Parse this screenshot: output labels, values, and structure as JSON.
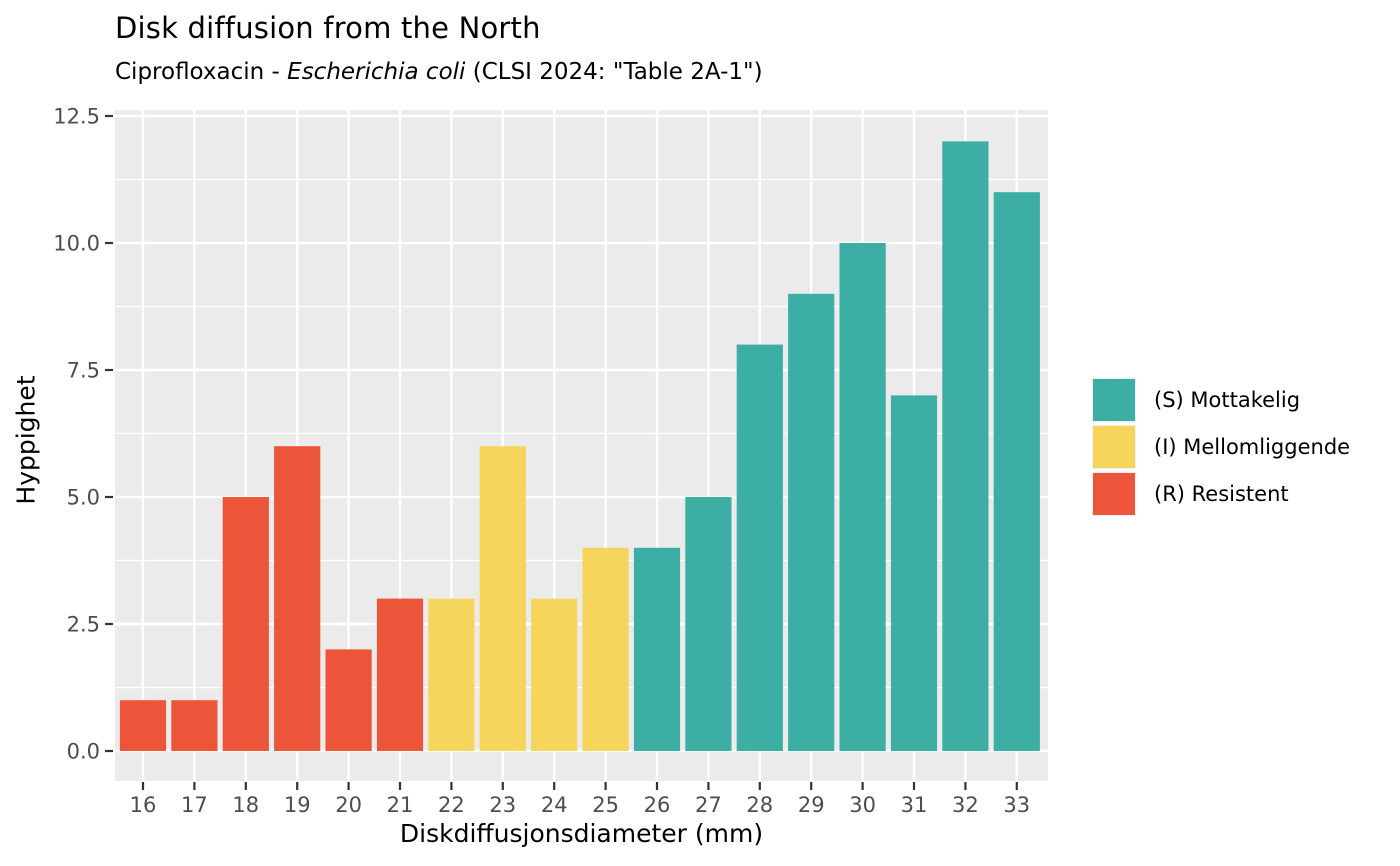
{
  "figure_title": "Disk diffusion from the North",
  "subtitle": {
    "prefix": "Ciprofloxacin - ",
    "italic": "Escherichia coli",
    "suffix": " (CLSI 2024: \"Table 2A-1\")"
  },
  "chart_data": {
    "type": "bar",
    "title": "Disk diffusion from the North",
    "subtitle_plain": "Ciprofloxacin - Escherichia coli (CLSI 2024: \"Table 2A-1\")",
    "xlabel": "Diskdiffusjonsdiameter (mm)",
    "ylabel": "Hyppighet",
    "categories": [
      16,
      17,
      18,
      19,
      20,
      21,
      22,
      23,
      24,
      25,
      26,
      27,
      28,
      29,
      30,
      31,
      32,
      33
    ],
    "values": [
      1,
      1,
      5,
      6,
      2,
      3,
      3,
      6,
      3,
      4,
      4,
      5,
      8,
      9,
      10,
      7,
      12,
      11
    ],
    "groups": [
      "R",
      "R",
      "R",
      "R",
      "R",
      "R",
      "I",
      "I",
      "I",
      "I",
      "S",
      "S",
      "S",
      "S",
      "S",
      "S",
      "S",
      "S"
    ],
    "series_colors": {
      "S": "#3CAEA3",
      "I": "#F6D55C",
      "R": "#ED553B"
    },
    "y_ticks": {
      "values": [
        0,
        2.5,
        5,
        7.5,
        10,
        12.5
      ],
      "labels": [
        "0.0",
        "2.5",
        "5.0",
        "7.5",
        "10.0",
        "12.5"
      ]
    },
    "y_minor_ticks": [
      1.25,
      3.75,
      6.25,
      8.75,
      11.25
    ],
    "ylim": [
      -0.6,
      12.62
    ],
    "grid": "on",
    "legend_position": "right",
    "legend": [
      {
        "group": "S",
        "label": "(S) Mottakelig",
        "color": "#3CAEA3"
      },
      {
        "group": "I",
        "label": "(I) Mellomliggende",
        "color": "#F6D55C"
      },
      {
        "group": "R",
        "label": "(R) Resistent",
        "color": "#ED553B"
      }
    ],
    "colors": {
      "panel_background": "#EBEBEB",
      "gridline": "#FFFFFF",
      "tick_mark": "#333333",
      "tick_label": "#4D4D4D",
      "text": "#000000"
    }
  }
}
